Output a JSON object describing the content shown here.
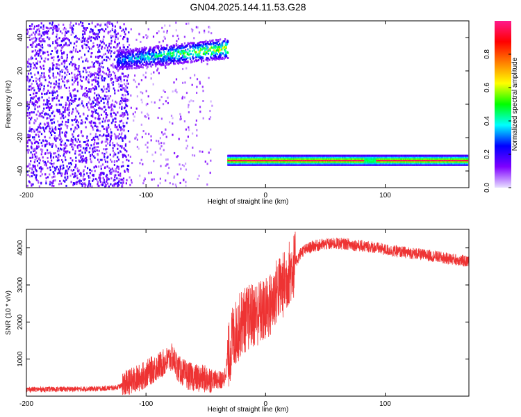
{
  "title": "GN04.2025.144.11.53.G28",
  "colors": {
    "snr_line": "#ee3333",
    "frame": "#000000"
  },
  "chart_data": [
    {
      "type": "heatmap",
      "xlabel": "Height of straight line (km)",
      "ylabel": "Frequency (Hz)",
      "xlim": [
        -200,
        170
      ],
      "ylim": [
        -50,
        50
      ],
      "xticks": [
        -200,
        -100,
        0,
        100
      ],
      "yticks": [
        40,
        20,
        0,
        -20,
        -40
      ],
      "colorbar": {
        "label": "Normalized spectral amplitude",
        "range": [
          0,
          1
        ],
        "ticks": [
          0.0,
          0.2,
          0.4,
          0.6,
          0.8
        ],
        "colormap": [
          "#e8e0ff",
          "#7f00ff",
          "#0000ff",
          "#00ffff",
          "#00ff00",
          "#ffff00",
          "#ff7f00",
          "#ff0000",
          "#ff1a8c"
        ]
      },
      "features": [
        {
          "name": "diffuse noise",
          "x": [
            -200,
            -115
          ],
          "y": [
            -50,
            50
          ],
          "amp": 0.35
        },
        {
          "name": "sparse noise",
          "x": [
            -115,
            -45
          ],
          "y": [
            -50,
            50
          ],
          "amp": 0.1
        },
        {
          "name": "rising tone",
          "x": [
            -125,
            -32
          ],
          "y_start": 27,
          "y_end": 34,
          "amp": 0.6
        },
        {
          "name": "carrier",
          "x": [
            -32,
            170
          ],
          "y": -33,
          "amp": 0.95
        }
      ]
    },
    {
      "type": "line",
      "xlabel": "Height of straight line (km)",
      "ylabel": "SNR (10 * v/v)",
      "xlim": [
        -200,
        170
      ],
      "ylim": [
        0,
        4500
      ],
      "xticks": [
        -200,
        -100,
        0,
        100
      ],
      "yticks": [
        1000,
        2000,
        3000,
        4000
      ],
      "series": [
        {
          "x": [
            -200,
            -180,
            -160,
            -140,
            -125,
            -115,
            -105,
            -95,
            -85,
            -78,
            -72,
            -65,
            -55,
            -45,
            -35,
            -32,
            -28,
            -20,
            -10,
            0,
            5,
            10,
            15,
            20,
            25,
            30,
            40,
            50,
            60,
            70,
            80,
            90,
            100,
            110,
            120,
            130,
            140,
            150,
            160,
            170
          ],
          "y": [
            180,
            185,
            190,
            200,
            230,
            350,
            500,
            700,
            900,
            1050,
            700,
            550,
            470,
            460,
            420,
            900,
            1500,
            2000,
            2200,
            2300,
            2500,
            2900,
            3000,
            3350,
            3600,
            3900,
            4050,
            4100,
            4120,
            4100,
            4050,
            4020,
            3950,
            3900,
            3870,
            3820,
            3780,
            3720,
            3680,
            3620
          ]
        }
      ]
    }
  ]
}
